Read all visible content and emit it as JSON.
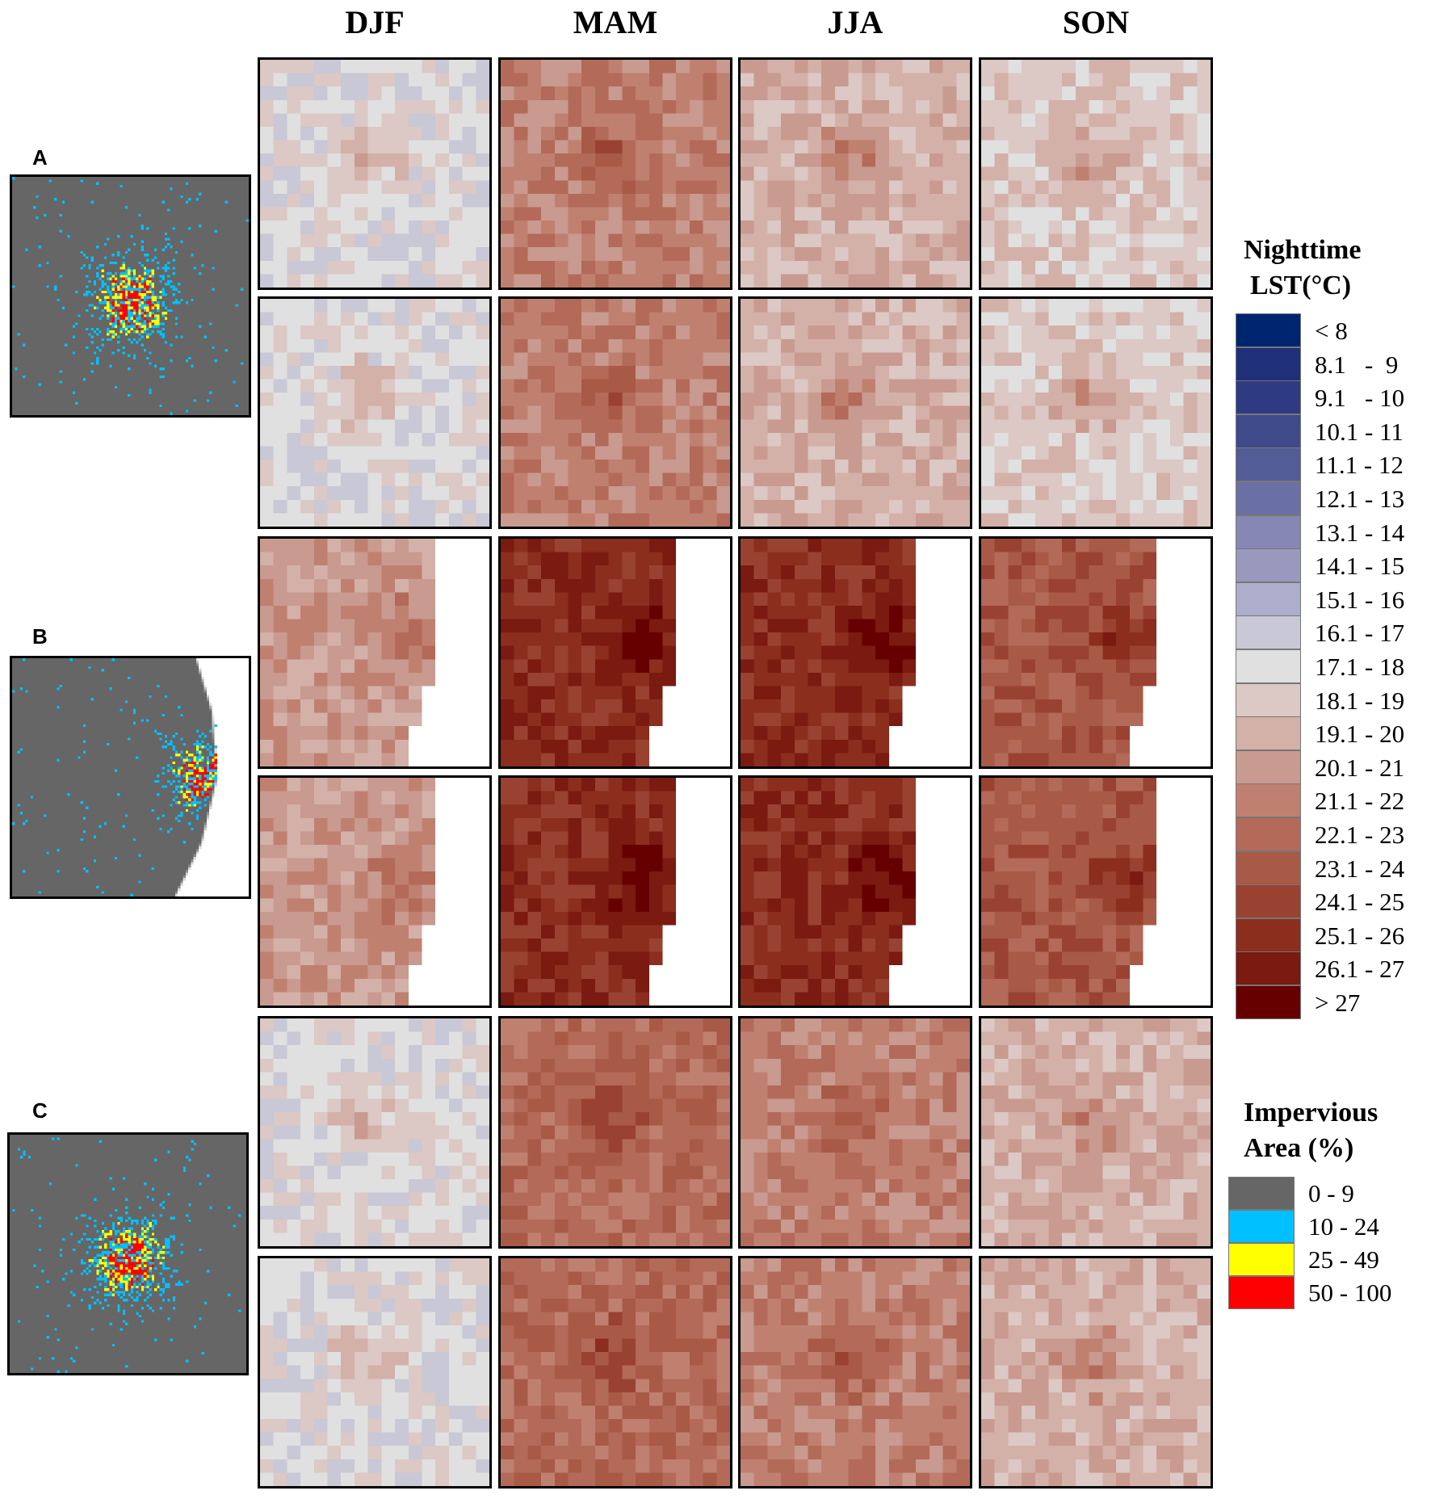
{
  "seasons": [
    "DJF",
    "MAM",
    "JJA",
    "SON"
  ],
  "sites": [
    {
      "label": "A",
      "coastal": false,
      "lst_levels": [
        [
          10,
          14,
          12,
          11
        ],
        [
          10,
          14,
          12,
          11
        ]
      ]
    },
    {
      "label": "B",
      "coastal": true,
      "lst_levels": [
        [
          13,
          18,
          18,
          16
        ],
        [
          13,
          18,
          18,
          16
        ]
      ]
    },
    {
      "label": "C",
      "coastal": false,
      "lst_levels": [
        [
          10,
          15,
          14,
          12
        ],
        [
          10,
          15,
          14,
          12
        ]
      ]
    }
  ],
  "lst_legend": {
    "title_line1": "Nighttime",
    "title_line2": "LST(°C)",
    "classes": [
      {
        "label": "< 8",
        "color": "#002570"
      },
      {
        "label": "8.1   -  9",
        "color": "#1f2f7a"
      },
      {
        "label": "9.1   - 10",
        "color": "#2e3a82"
      },
      {
        "label": "10.1 - 11",
        "color": "#3f4a8a"
      },
      {
        "label": "11.1 - 12",
        "color": "#525c96"
      },
      {
        "label": "12.1 - 13",
        "color": "#6a70a3"
      },
      {
        "label": "13.1 - 14",
        "color": "#8687b3"
      },
      {
        "label": "14.1 - 15",
        "color": "#9999bd"
      },
      {
        "label": "15.1 - 16",
        "color": "#adaecb"
      },
      {
        "label": "16.1 - 17",
        "color": "#c8c8d6"
      },
      {
        "label": "17.1 - 18",
        "color": "#e0e0e0"
      },
      {
        "label": "18.1 - 19",
        "color": "#dcc8c4"
      },
      {
        "label": "19.1 - 20",
        "color": "#d3b1a8"
      },
      {
        "label": "20.1 - 21",
        "color": "#c99a8f"
      },
      {
        "label": "21.1 - 22",
        "color": "#c08070"
      },
      {
        "label": "22.1 - 23",
        "color": "#b36a58"
      },
      {
        "label": "23.1 - 24",
        "color": "#a85a46"
      },
      {
        "label": "24.1 - 25",
        "color": "#9a4232"
      },
      {
        "label": "25.1 - 26",
        "color": "#8b2e1e"
      },
      {
        "label": "26.1 - 27",
        "color": "#7a1a10"
      },
      {
        "label": "> 27",
        "color": "#660000"
      }
    ]
  },
  "impervious_legend": {
    "title_line1": "Impervious",
    "title_line2": "Area (%)",
    "classes": [
      {
        "label": "0 - 9",
        "color": "#666666"
      },
      {
        "label": "10 - 24",
        "color": "#00c0ff"
      },
      {
        "label": "25 - 49",
        "color": "#ffff00"
      },
      {
        "label": "50 - 100",
        "color": "#ff0000"
      }
    ]
  }
}
